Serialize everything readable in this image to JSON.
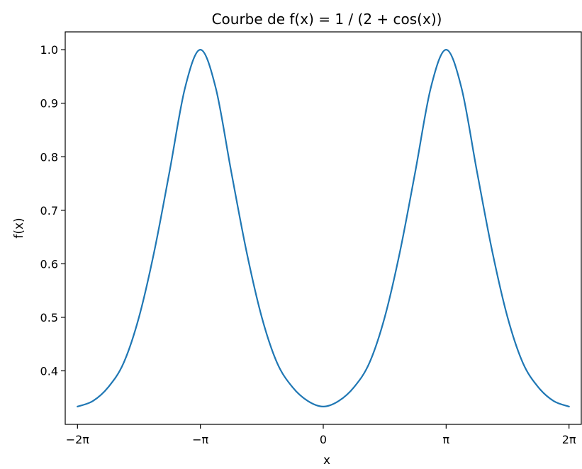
{
  "chart_data": {
    "type": "line",
    "title": "Courbe de f(x) = 1 / (2 + cos(x))",
    "xlabel": "x",
    "ylabel": "f(x)",
    "xlim": [
      -6.597,
      6.597
    ],
    "ylim": [
      0.3,
      1.0333
    ],
    "x_ticks": [
      {
        "value": -6.2832,
        "label": "−2π"
      },
      {
        "value": -3.1416,
        "label": "−π"
      },
      {
        "value": 0,
        "label": "0"
      },
      {
        "value": 3.1416,
        "label": "π"
      },
      {
        "value": 6.2832,
        "label": "2π"
      }
    ],
    "y_ticks": [
      {
        "value": 0.4,
        "label": "0.4"
      },
      {
        "value": 0.5,
        "label": "0.5"
      },
      {
        "value": 0.6,
        "label": "0.6"
      },
      {
        "value": 0.7,
        "label": "0.7"
      },
      {
        "value": 0.8,
        "label": "0.8"
      },
      {
        "value": 0.9,
        "label": "0.9"
      },
      {
        "value": 1.0,
        "label": "1.0"
      }
    ],
    "grid": false,
    "series": [
      {
        "color": "#1f77b4",
        "x": [
          -6.2832,
          -5.8905,
          -5.4978,
          -5.1051,
          -4.7124,
          -4.3197,
          -3.927,
          -3.5343,
          -3.1416,
          -2.7489,
          -2.3562,
          -1.9635,
          -1.5708,
          -1.1781,
          -0.7854,
          -0.3927,
          0,
          0.3927,
          0.7854,
          1.1781,
          1.5708,
          1.9635,
          2.3562,
          2.7489,
          3.1416,
          3.5343,
          3.927,
          4.3197,
          4.7124,
          5.1051,
          5.4978,
          5.8905,
          6.2832
        ],
        "y": [
          0.3333,
          0.3436,
          0.3694,
          0.4146,
          0.5,
          0.6235,
          0.7735,
          0.9286,
          1.0,
          0.9286,
          0.7735,
          0.6235,
          0.5,
          0.4146,
          0.3694,
          0.3436,
          0.3333,
          0.3436,
          0.3694,
          0.4146,
          0.5,
          0.6235,
          0.7735,
          0.9286,
          1.0,
          0.9286,
          0.7735,
          0.6235,
          0.5,
          0.4146,
          0.3694,
          0.3436,
          0.3333
        ]
      }
    ]
  }
}
